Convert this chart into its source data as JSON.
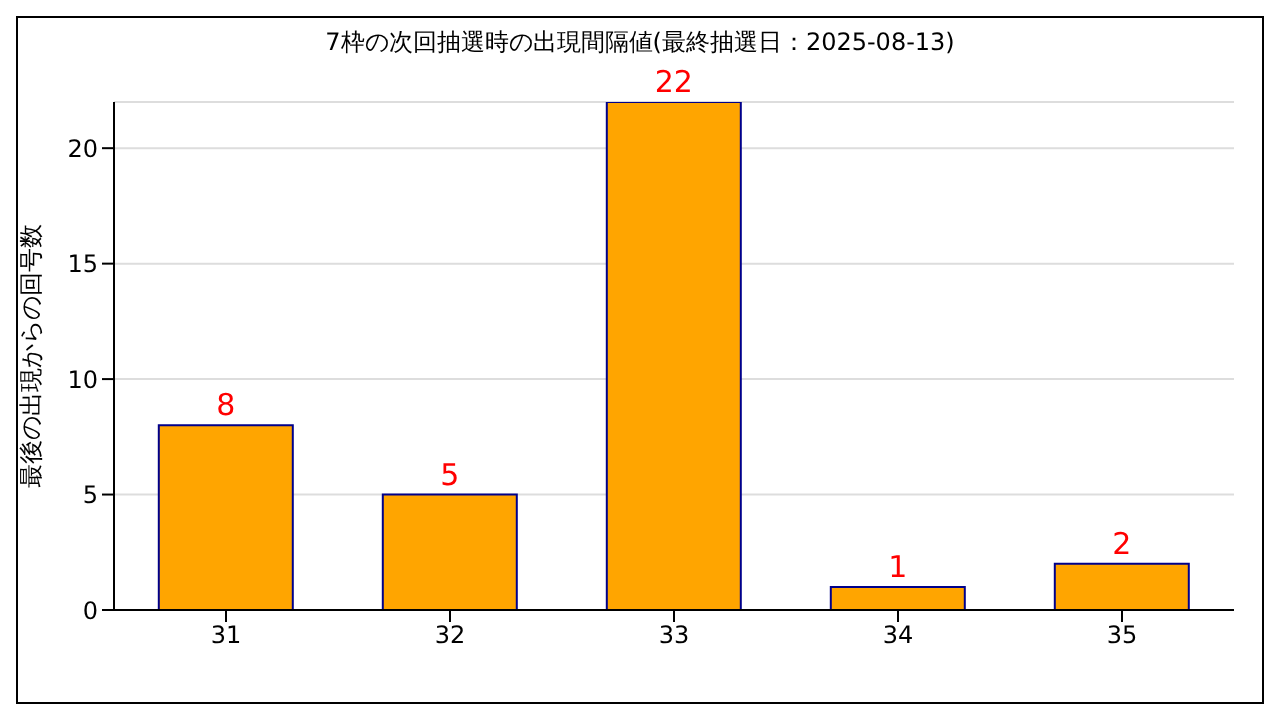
{
  "chart_data": {
    "type": "bar",
    "title": "7枠の次回抽選時の出現間隔値(最終抽選日：2025-08-13)",
    "ylabel": "最後の出現からの回号数",
    "categories": [
      "31",
      "32",
      "33",
      "34",
      "35"
    ],
    "values": [
      8,
      5,
      22,
      1,
      2
    ],
    "color": "#ffa500",
    "ylim": [
      0,
      22
    ],
    "yticks": [
      0,
      5,
      10,
      15,
      20
    ],
    "grid": "y",
    "data_labels": true
  }
}
